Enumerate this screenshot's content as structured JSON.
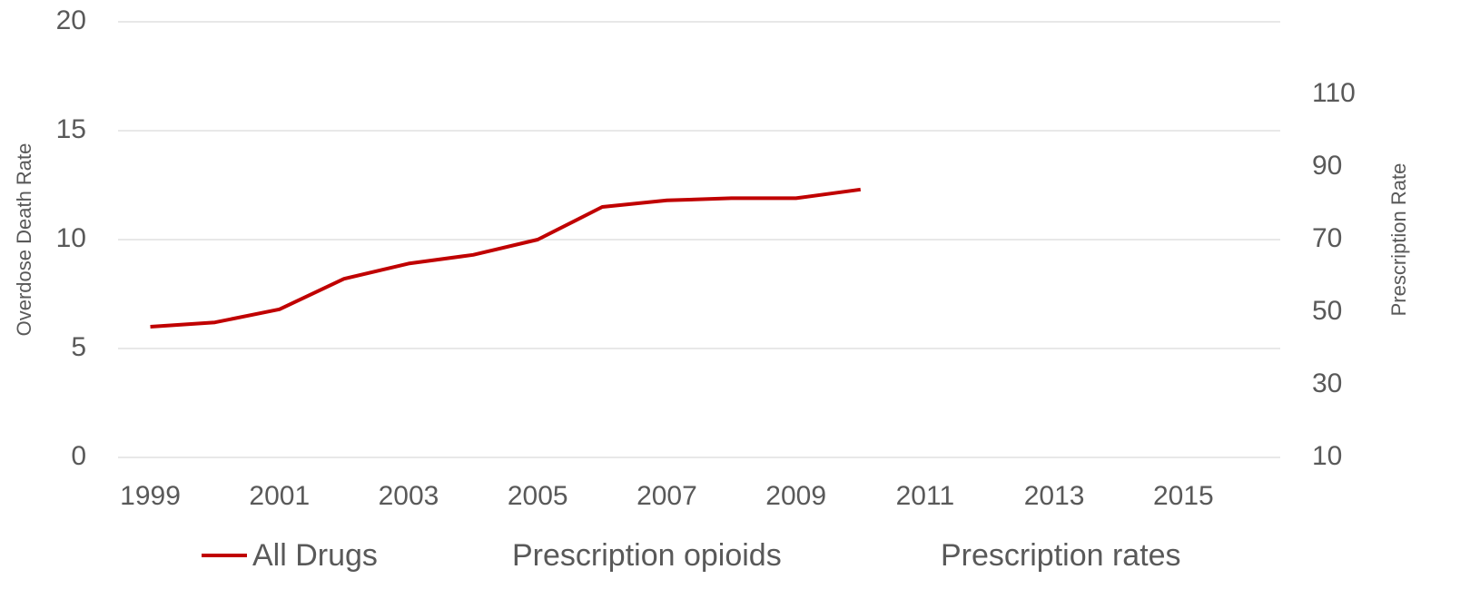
{
  "chart_data": {
    "type": "line",
    "x": [
      1999,
      2000,
      2001,
      2002,
      2003,
      2004,
      2005,
      2006,
      2007,
      2008,
      2009,
      2010
    ],
    "series": [
      {
        "name": "All Drugs",
        "color": "#c00000",
        "values": [
          6.0,
          6.2,
          6.8,
          8.2,
          8.9,
          9.3,
          10.0,
          11.5,
          11.8,
          11.9,
          11.9,
          12.3
        ]
      },
      {
        "name": "Prescription opioids",
        "color": "#ffffff",
        "values": [
          null,
          null,
          null,
          null,
          null,
          null,
          null,
          null,
          null,
          null,
          null,
          null
        ]
      },
      {
        "name": "Prescription rates",
        "color": "#ffffff",
        "axis": "y2",
        "values": [
          null,
          null,
          null,
          null,
          null,
          null,
          null,
          null,
          null,
          null,
          null,
          null
        ]
      }
    ],
    "y_label": "Overdose Death Rate",
    "y2_label": "Prescription Rate",
    "xlim": [
      1998.5,
      2016.5
    ],
    "xticks": [
      1999,
      2001,
      2003,
      2005,
      2007,
      2009,
      2011,
      2013,
      2015
    ],
    "ylim": [
      0,
      20
    ],
    "yticks": [
      0,
      5,
      10,
      15,
      20
    ],
    "y2lim": [
      10,
      130
    ],
    "y2ticks": [
      10,
      30,
      50,
      70,
      90,
      110
    ],
    "grid": true,
    "legend": "bottom"
  }
}
